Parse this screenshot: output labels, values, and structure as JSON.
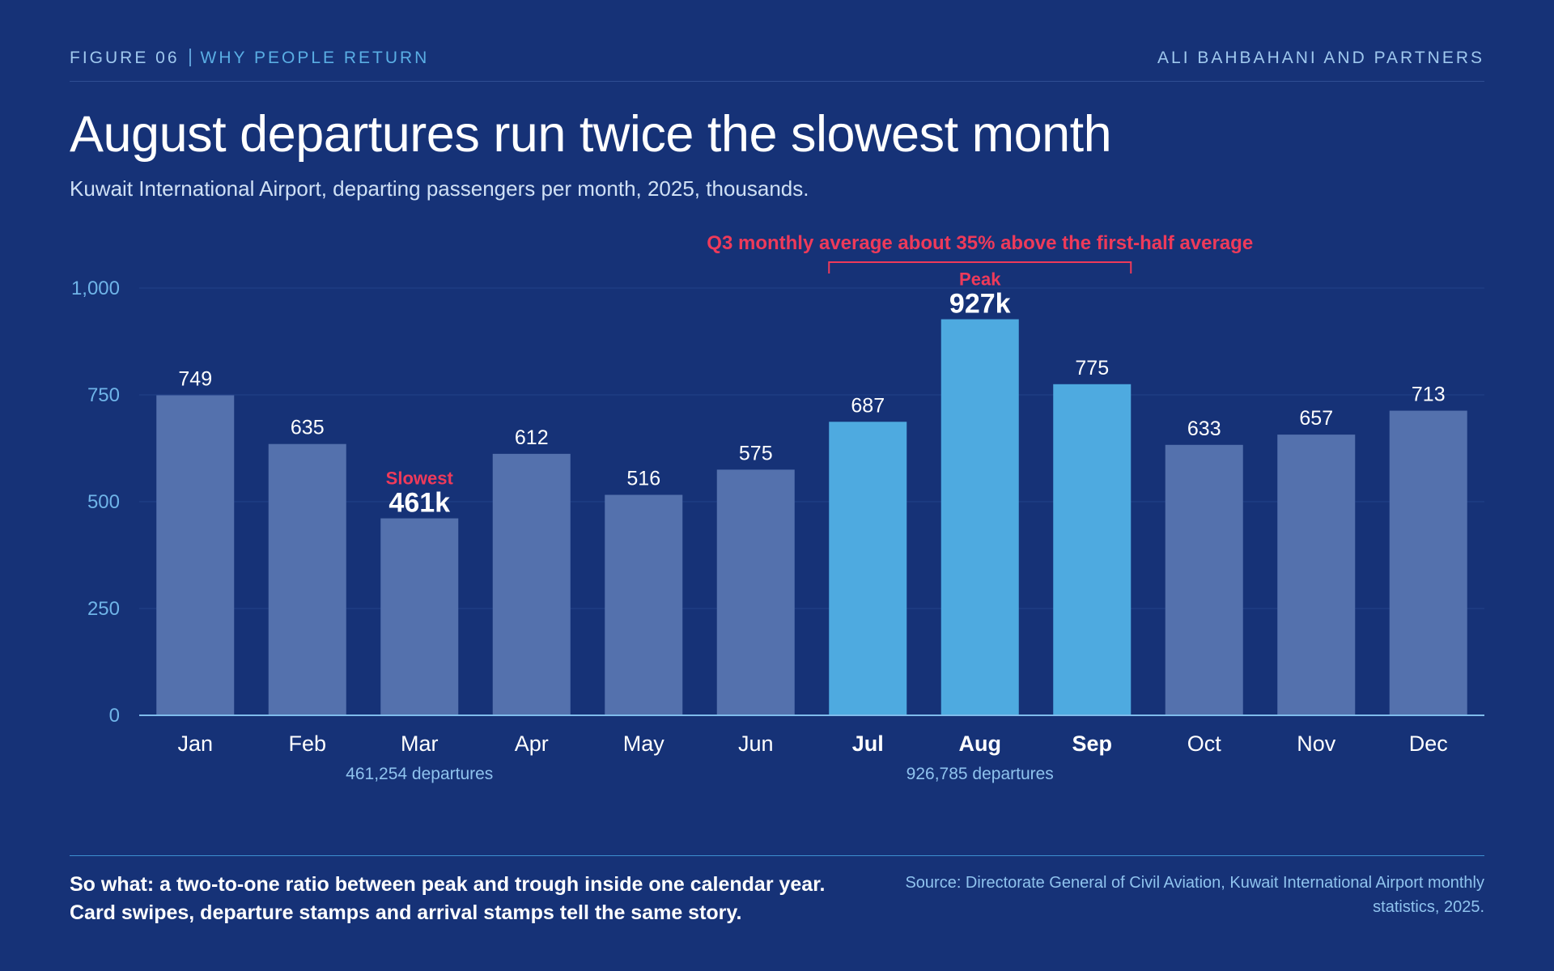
{
  "header": {
    "figure_number": "FIGURE 06",
    "figure_topic": "WHY PEOPLE RETURN",
    "organization": "ALI BAHBAHANI AND PARTNERS"
  },
  "title": "August departures run twice the slowest month",
  "subtitle": "Kuwait International Airport, departing passengers per month, 2025, thousands.",
  "chart_data": {
    "type": "bar",
    "categories": [
      "Jan",
      "Feb",
      "Mar",
      "Apr",
      "May",
      "Jun",
      "Jul",
      "Aug",
      "Sep",
      "Oct",
      "Nov",
      "Dec"
    ],
    "values": [
      749,
      635,
      461,
      612,
      516,
      575,
      687,
      927,
      775,
      633,
      657,
      713
    ],
    "value_labels": [
      "749",
      "635",
      "461k",
      "612",
      "516",
      "575",
      "687",
      "927k",
      "775",
      "633",
      "657",
      "713"
    ],
    "ylim": [
      0,
      1000
    ],
    "yticks": [
      0,
      250,
      500,
      750,
      1000
    ],
    "ytick_labels": [
      "0",
      "250",
      "500",
      "750",
      "1,000"
    ],
    "grid": true,
    "highlighted_categories": [
      "Jul",
      "Aug",
      "Sep"
    ],
    "annotations": {
      "bracket_label": "Q3 monthly average about 35% above the first-half average",
      "bracket_range": [
        "Jul",
        "Sep"
      ],
      "peak": {
        "category": "Aug",
        "tag": "Peak",
        "label": "927k",
        "detail": "926,785 departures"
      },
      "slowest": {
        "category": "Mar",
        "tag": "Slowest",
        "label": "461k",
        "detail": "461,254 departures"
      }
    },
    "colors": {
      "bar": "#5471ad",
      "bar_highlight": "#4eaae0",
      "accent": "#ee3a5a",
      "axis_text": "#6fb4e8",
      "grid": "#234189",
      "background": "#163277"
    }
  },
  "footer": {
    "so_what": "So what: a two-to-one ratio between peak and trough inside one calendar year. Card swipes, departure stamps and arrival stamps tell the same story.",
    "source": "Source: Directorate General of Civil Aviation, Kuwait International Airport monthly statistics, 2025."
  }
}
